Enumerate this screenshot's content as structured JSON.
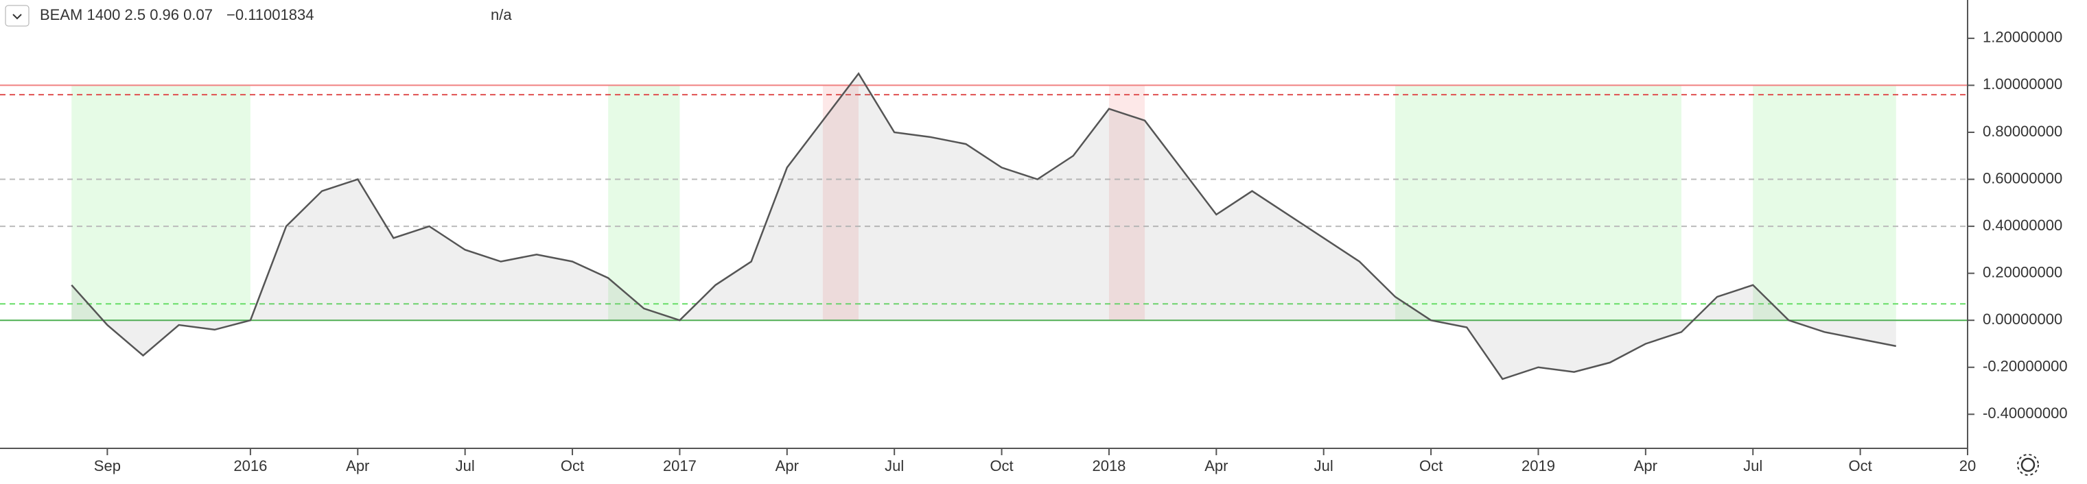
{
  "chart_data": {
    "type": "line",
    "header": {
      "symbol": "BEAM 1400 2.5 0.96 0.07",
      "value": "−0.11001834",
      "extra": "n/a"
    },
    "x": [
      "2015-08",
      "2015-09",
      "2015-10",
      "2015-11",
      "2015-12",
      "2016-01",
      "2016-02",
      "2016-03",
      "2016-04",
      "2016-05",
      "2016-06",
      "2016-07",
      "2016-08",
      "2016-09",
      "2016-10",
      "2016-11",
      "2016-12",
      "2017-01",
      "2017-02",
      "2017-03",
      "2017-04",
      "2017-05",
      "2017-06",
      "2017-07",
      "2017-08",
      "2017-09",
      "2017-10",
      "2017-11",
      "2017-12",
      "2018-01",
      "2018-02",
      "2018-03",
      "2018-04",
      "2018-05",
      "2018-06",
      "2018-07",
      "2018-08",
      "2018-09",
      "2018-10",
      "2018-11",
      "2018-12",
      "2019-01",
      "2019-02",
      "2019-03",
      "2019-04",
      "2019-05",
      "2019-06",
      "2019-07",
      "2019-08",
      "2019-09",
      "2019-10",
      "2019-11"
    ],
    "series": [
      {
        "name": "BEAM",
        "color": "#555555",
        "values": [
          0.15,
          -0.02,
          -0.15,
          -0.02,
          -0.04,
          0.0,
          0.4,
          0.55,
          0.6,
          0.35,
          0.4,
          0.3,
          0.25,
          0.28,
          0.25,
          0.18,
          0.05,
          0.0,
          0.15,
          0.25,
          0.65,
          0.85,
          1.05,
          0.8,
          0.78,
          0.75,
          0.65,
          0.6,
          0.7,
          0.9,
          0.85,
          0.65,
          0.45,
          0.55,
          0.45,
          0.35,
          0.25,
          0.1,
          0.0,
          -0.03,
          -0.25,
          -0.2,
          -0.22,
          -0.18,
          -0.1,
          -0.05,
          0.1,
          0.15,
          0.0,
          -0.05,
          -0.08,
          -0.11
        ]
      }
    ],
    "xlim": [
      "2015-06",
      "2020-01"
    ],
    "xticks": [
      {
        "value": "2015-09",
        "label": "Sep"
      },
      {
        "value": "2016-01",
        "label": "2016"
      },
      {
        "value": "2016-04",
        "label": "Apr"
      },
      {
        "value": "2016-07",
        "label": "Jul"
      },
      {
        "value": "2016-10",
        "label": "Oct"
      },
      {
        "value": "2017-01",
        "label": "2017"
      },
      {
        "value": "2017-04",
        "label": "Apr"
      },
      {
        "value": "2017-07",
        "label": "Jul"
      },
      {
        "value": "2017-10",
        "label": "Oct"
      },
      {
        "value": "2018-01",
        "label": "2018"
      },
      {
        "value": "2018-04",
        "label": "Apr"
      },
      {
        "value": "2018-07",
        "label": "Jul"
      },
      {
        "value": "2018-10",
        "label": "Oct"
      },
      {
        "value": "2019-01",
        "label": "2019"
      },
      {
        "value": "2019-04",
        "label": "Apr"
      },
      {
        "value": "2019-07",
        "label": "Jul"
      },
      {
        "value": "2019-10",
        "label": "Oct"
      },
      {
        "value": "2020-01",
        "label": "20"
      }
    ],
    "ylim": [
      -0.545,
      1.363
    ],
    "yticks": [
      {
        "value": 1.2,
        "label": "1.20000000"
      },
      {
        "value": 1.0,
        "label": "1.00000000"
      },
      {
        "value": 0.8,
        "label": "0.80000000"
      },
      {
        "value": 0.6,
        "label": "0.60000000"
      },
      {
        "value": 0.4,
        "label": "0.40000000"
      },
      {
        "value": 0.2,
        "label": "0.20000000"
      },
      {
        "value": 0,
        "label": "0.00000000"
      },
      {
        "value": -0.2,
        "label": "-0.20000000"
      },
      {
        "value": -0.4,
        "label": "-0.40000000"
      }
    ],
    "hlines": [
      {
        "value": 1.0,
        "color": "#f08080",
        "dashed": false
      },
      {
        "value": 0.96,
        "color": "#e05050",
        "dashed": true
      },
      {
        "value": 0.6,
        "color": "#bbbbbb",
        "dashed": true
      },
      {
        "value": 0.4,
        "color": "#bbbbbb",
        "dashed": true
      },
      {
        "value": 0.07,
        "color": "#66dd66",
        "dashed": true
      },
      {
        "value": 0,
        "color": "#4caf50",
        "dashed": false
      }
    ],
    "zones": [
      {
        "from": "2015-08",
        "to": "2016-01",
        "color": "#e6fbe6"
      },
      {
        "from": "2016-11",
        "to": "2017-01",
        "color": "#e6fbe6"
      },
      {
        "from": "2017-05",
        "to": "2017-06",
        "color": "#fde8e8"
      },
      {
        "from": "2018-01",
        "to": "2018-02",
        "color": "#fde8e8"
      },
      {
        "from": "2018-09",
        "to": "2019-05",
        "color": "#e6fbe6"
      },
      {
        "from": "2019-07",
        "to": "2019-11",
        "color": "#e6fbe6"
      }
    ]
  }
}
